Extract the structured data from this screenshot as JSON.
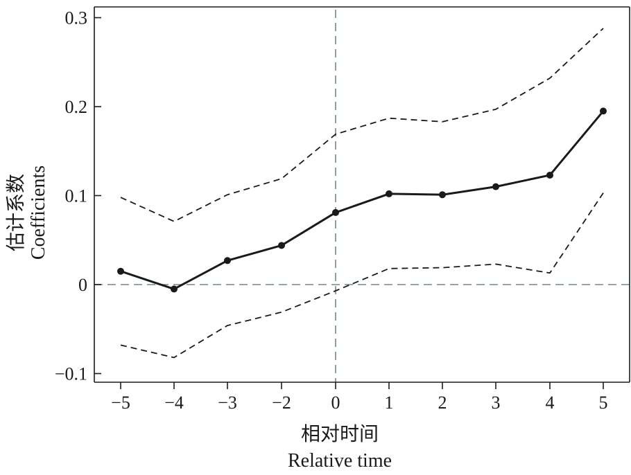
{
  "colors": {
    "main_line": "#1a1a1a",
    "ci_line": "#1a1a1a",
    "reference_line": "#6e8a86",
    "axis": "#1a1a1a"
  },
  "chart_data": {
    "type": "line",
    "xlabel_zh": "相对时间",
    "xlabel_en": "Relative time",
    "ylabel_zh": "估计系数",
    "ylabel_en": "Coefficients",
    "x_ticks": [
      -5,
      -4,
      -3,
      -2,
      0,
      1,
      2,
      3,
      4,
      5
    ],
    "x_tick_labels": [
      "−5",
      "−4",
      "−3",
      "−2",
      "0",
      "1",
      "2",
      "3",
      "4",
      "5"
    ],
    "y_ticks": [
      -0.1,
      0,
      0.1,
      0.2,
      0.3
    ],
    "y_tick_labels": [
      "−0.1",
      "0",
      "0.1",
      "0.2",
      "0.3"
    ],
    "xlim": [
      -5.5,
      5.5
    ],
    "ylim": [
      -0.11,
      0.31
    ],
    "reference_lines": {
      "x": 0,
      "y": 0,
      "style": "dashed"
    },
    "grid": false,
    "series": [
      {
        "role": "estimate",
        "style": "solid-with-markers",
        "x": [
          -5,
          -4,
          -3,
          -2,
          0,
          1,
          2,
          3,
          4,
          5
        ],
        "y": [
          0.015,
          -0.005,
          0.027,
          0.044,
          0.081,
          0.102,
          0.101,
          0.11,
          0.123,
          0.195
        ]
      },
      {
        "role": "upper-bound",
        "style": "dashed",
        "x": [
          -5,
          -4,
          -3,
          -2,
          0,
          1,
          2,
          3,
          4,
          5
        ],
        "y": [
          0.098,
          0.071,
          0.101,
          0.119,
          0.169,
          0.187,
          0.183,
          0.197,
          0.232,
          0.288
        ]
      },
      {
        "role": "lower-bound",
        "style": "dashed",
        "x": [
          -5,
          -4,
          -3,
          -2,
          0,
          1,
          2,
          3,
          4,
          5
        ],
        "y": [
          -0.068,
          -0.082,
          -0.046,
          -0.031,
          -0.007,
          0.018,
          0.019,
          0.023,
          0.013,
          0.103
        ]
      }
    ]
  }
}
